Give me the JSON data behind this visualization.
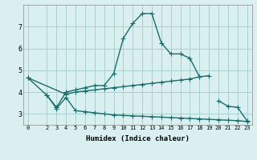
{
  "xlabel": "Humidex (Indice chaleur)",
  "background_color": "#daf0f0",
  "grid_color": "#aacfcf",
  "line_color": "#1a6b6b",
  "xlim": [
    -0.5,
    23.5
  ],
  "ylim": [
    2.5,
    8.0
  ],
  "xticks": [
    0,
    2,
    3,
    4,
    5,
    6,
    7,
    8,
    9,
    10,
    11,
    12,
    13,
    14,
    15,
    16,
    17,
    18,
    19,
    20,
    21,
    22,
    23
  ],
  "yticks": [
    3,
    4,
    5,
    6,
    7
  ],
  "line1_x": [
    0,
    2,
    3,
    4,
    5,
    6,
    7,
    8,
    9,
    10,
    11,
    12,
    13,
    14,
    15,
    16,
    17,
    18
  ],
  "line1_y": [
    4.65,
    3.85,
    3.3,
    4.0,
    4.1,
    4.2,
    4.3,
    4.3,
    4.85,
    6.45,
    7.15,
    7.6,
    7.6,
    6.25,
    5.75,
    5.75,
    5.55,
    4.7
  ],
  "line2_x": [
    0,
    4,
    5,
    6,
    7,
    8,
    9,
    10,
    11,
    12,
    13,
    14,
    15,
    16,
    17,
    18,
    19
  ],
  "line2_y": [
    4.65,
    3.9,
    4.0,
    4.05,
    4.1,
    4.15,
    4.2,
    4.25,
    4.3,
    4.35,
    4.4,
    4.45,
    4.5,
    4.55,
    4.6,
    4.7,
    4.75
  ],
  "line3_x": [
    2,
    3,
    4,
    5,
    6,
    7,
    8,
    9,
    10,
    11,
    12,
    13,
    14,
    15,
    16,
    17,
    18,
    19,
    20,
    21,
    22,
    23
  ],
  "line3_y": [
    3.85,
    3.25,
    3.75,
    3.15,
    3.1,
    3.05,
    3.0,
    2.95,
    2.93,
    2.91,
    2.89,
    2.87,
    2.85,
    2.83,
    2.81,
    2.79,
    2.77,
    2.75,
    2.73,
    2.71,
    2.69,
    2.65
  ],
  "line4_x": [
    20,
    21,
    22,
    23
  ],
  "line4_y": [
    3.6,
    3.35,
    3.3,
    2.68
  ]
}
